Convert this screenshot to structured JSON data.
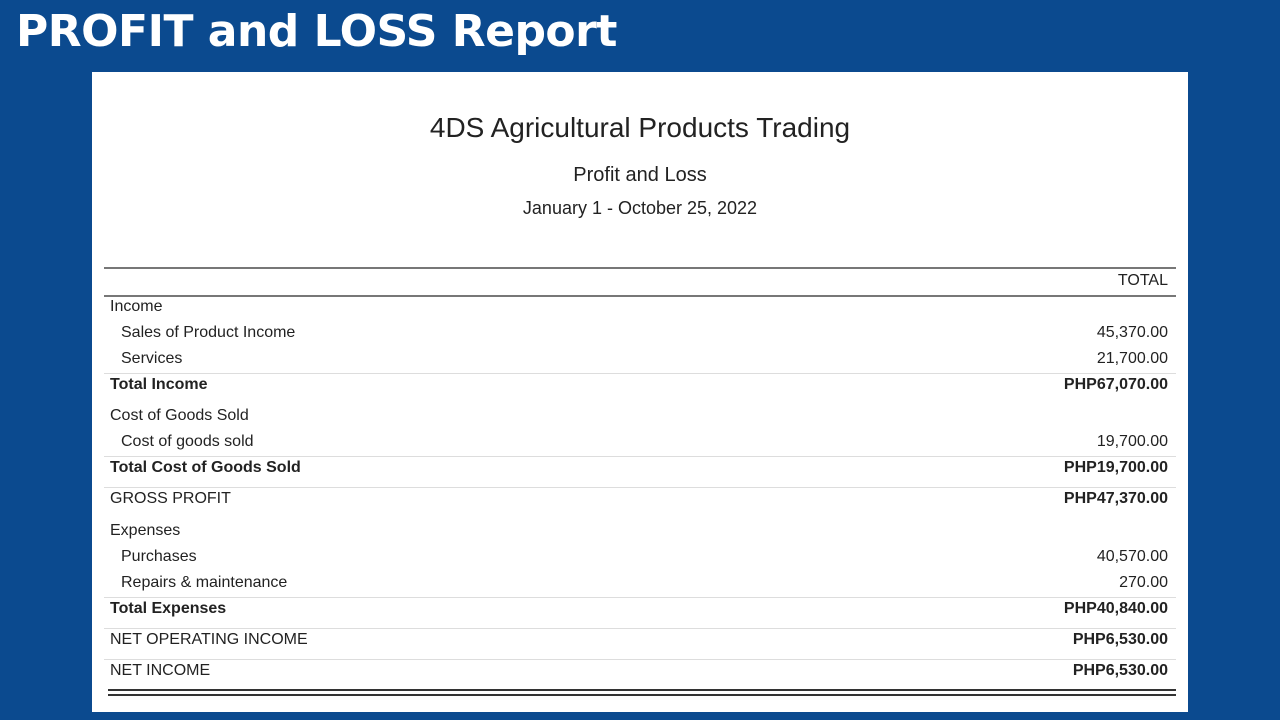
{
  "slide_title": "PROFIT and LOSS Report",
  "report": {
    "company": "4DS Agricultural Products Trading",
    "name": "Profit and Loss",
    "period": "January 1 - October 25, 2022",
    "column_header": "TOTAL",
    "rows": [
      {
        "label": "Income",
        "amount": "",
        "type": "section"
      },
      {
        "label": "Sales of Product Income",
        "amount": "45,370.00",
        "type": "item"
      },
      {
        "label": "Services",
        "amount": "21,700.00",
        "type": "item"
      },
      {
        "label": "Total Income",
        "amount": "PHP67,070.00",
        "type": "total"
      },
      {
        "label": "Cost of Goods Sold",
        "amount": "",
        "type": "section"
      },
      {
        "label": "Cost of goods sold",
        "amount": "19,700.00",
        "type": "item"
      },
      {
        "label": "Total Cost of Goods Sold",
        "amount": "PHP19,700.00",
        "type": "total"
      },
      {
        "label": "GROSS PROFIT",
        "amount": "PHP47,370.00",
        "type": "summary"
      },
      {
        "label": "Expenses",
        "amount": "",
        "type": "section"
      },
      {
        "label": "Purchases",
        "amount": "40,570.00",
        "type": "item"
      },
      {
        "label": "Repairs & maintenance",
        "amount": "270.00",
        "type": "item"
      },
      {
        "label": "Total Expenses",
        "amount": "PHP40,840.00",
        "type": "total"
      },
      {
        "label": "NET OPERATING INCOME",
        "amount": "PHP6,530.00",
        "type": "summary"
      },
      {
        "label": "NET INCOME",
        "amount": "PHP6,530.00",
        "type": "summary"
      }
    ]
  }
}
